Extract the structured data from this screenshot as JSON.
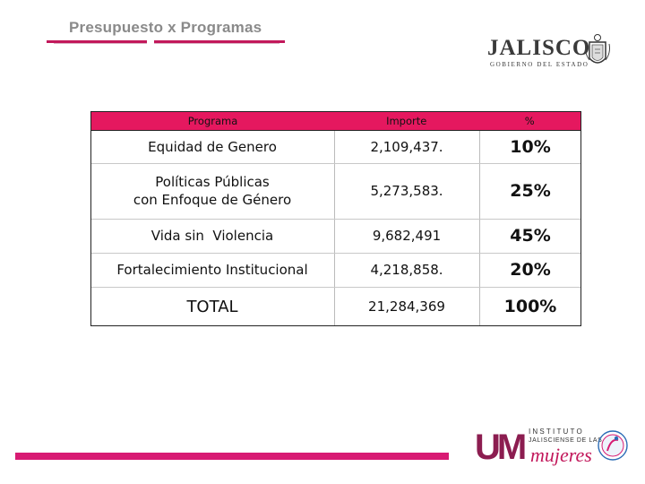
{
  "header": {
    "title": "Presupuesto x Programas",
    "brand_color": "#c2185b"
  },
  "logos": {
    "jalisco": {
      "word": "JALISCO",
      "subtitle": "GOBIERNO DEL ESTADO"
    },
    "institute": {
      "letters": "UM",
      "line1": "INSTITUTO",
      "line2": "JALISCIENSE DE LAS",
      "line3": "mujeres"
    }
  },
  "table": {
    "header_color": "#e5185f",
    "columns": [
      "Programa",
      "Importe",
      "%"
    ],
    "rows": [
      {
        "programa": "Equidad de Genero",
        "importe": "2,109,437.",
        "pct": "10%"
      },
      {
        "programa_line1": "Políticas Públicas",
        "programa_line2": "con Enfoque de Género",
        "importe": "5,273,583.",
        "pct": "25%"
      },
      {
        "programa": "Vida sin  Violencia",
        "importe": "9,682,491",
        "pct": "45%"
      },
      {
        "programa": "Fortalecimiento Institucional",
        "importe": "4,218,858.",
        "pct": "20%"
      }
    ],
    "total": {
      "label": "TOTAL",
      "importe": "21,284,369",
      "pct": "100%"
    }
  }
}
